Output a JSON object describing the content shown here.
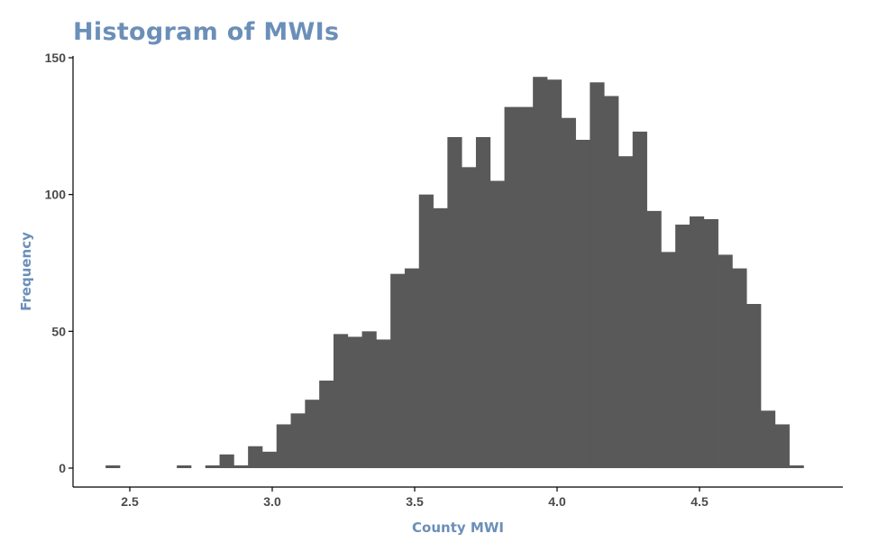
{
  "chart_data": {
    "type": "bar",
    "title": "Histogram of MWIs",
    "xlabel": "County MWI",
    "ylabel": "Frequency",
    "xlim": [
      2.4,
      4.9
    ],
    "ylim": [
      0,
      150
    ],
    "x_ticks": [
      2.5,
      3.0,
      3.5,
      4.0,
      4.5
    ],
    "x_tick_labels": [
      "2.5",
      "3.0",
      "3.5",
      "4.0",
      "4.5"
    ],
    "y_ticks": [
      0,
      50,
      100,
      150
    ],
    "y_tick_labels": [
      "0",
      "50",
      "100",
      "150"
    ],
    "bin_start": 2.415,
    "bin_width": 0.05,
    "values": [
      1,
      0,
      0,
      0,
      0,
      1,
      0,
      1,
      5,
      1,
      8,
      6,
      16,
      20,
      25,
      32,
      49,
      48,
      50,
      47,
      71,
      73,
      100,
      95,
      121,
      110,
      121,
      105,
      132,
      132,
      143,
      142,
      128,
      120,
      141,
      136,
      114,
      123,
      94,
      79,
      89,
      92,
      91,
      78,
      73,
      60,
      21,
      16,
      1
    ],
    "grid": false,
    "legend": "none",
    "colors": {
      "bar": "#595959",
      "title": "#6b8fb8",
      "axis_title": "#6b8fb8",
      "axis_line": "#000000",
      "tick_label": "#4a4a4a"
    }
  }
}
